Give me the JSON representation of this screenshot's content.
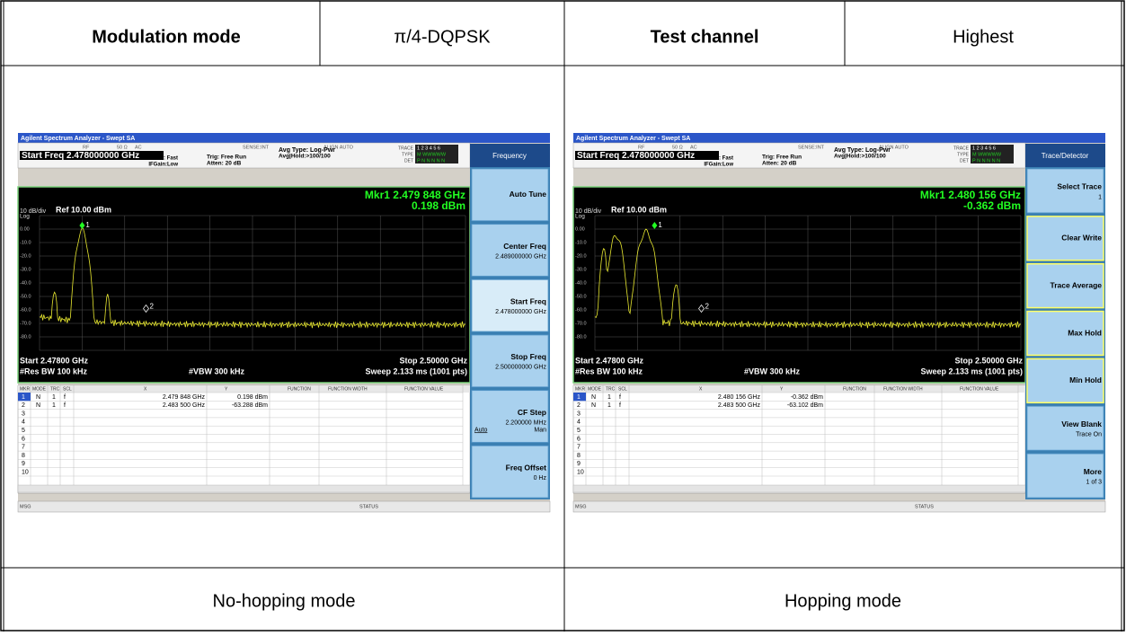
{
  "header": {
    "cells": [
      "Modulation mode",
      "π/4-DQPSK",
      "Test channel",
      "Highest"
    ]
  },
  "captions": [
    "No-hopping mode",
    "Hopping mode"
  ],
  "panels": [
    {
      "title_bar": "Agilent Spectrum Analyzer - Swept SA",
      "status_top": [
        "RF",
        "50 Ω",
        "AC",
        "SENSE:INT",
        "ALIGN AUTO"
      ],
      "start_freq": "Start Freq 2.478000000 GHz",
      "pno": "PNO: Fast",
      "ifgain": "IFGain:Low",
      "trig": "Trig: Free Run",
      "atten": "Atten: 20 dB",
      "avg_type": "Avg Type: Log-Pwr",
      "avg_hold": "Avg|Hold:>100/100",
      "trace_labels": [
        "TRACE",
        "TYPE",
        "DET"
      ],
      "trace_values": [
        "1 2 3 4 5 6",
        "M WWWWW",
        "P N N N N N"
      ],
      "scale": "10 dB/div",
      "ref": "Ref 10.00 dBm",
      "log": "Log",
      "y_labels": [
        "0.00",
        "-10.0",
        "-20.0",
        "-30.0",
        "-40.0",
        "-50.0",
        "-60.0",
        "-70.0",
        "-80.0"
      ],
      "marker_ids": [
        "1",
        "2"
      ],
      "marker_freq": "Mkr1 2.479 848 GHz",
      "marker_level": "0.198 dBm",
      "start": "Start 2.47800 GHz",
      "stop": "Stop 2.50000 GHz",
      "rbw": "#Res BW 100 kHz",
      "vbw": "#VBW 300 kHz",
      "sweep": "Sweep  2.133 ms (1001 pts)",
      "table_header": [
        "MKR",
        "MODE",
        "TRC",
        "SCL",
        "X",
        "Y",
        "FUNCTION",
        "FUNCTION WIDTH",
        "FUNCTION VALUE"
      ],
      "table_rows": [
        [
          "1",
          "N",
          "1",
          "f",
          "2.479 848 GHz",
          "0.198 dBm"
        ],
        [
          "2",
          "N",
          "1",
          "f",
          "2.483 500 GHz",
          "-63.288 dBm"
        ]
      ],
      "row_numbers": [
        "3",
        "4",
        "5",
        "6",
        "7",
        "8",
        "9",
        "10"
      ],
      "msg": "MSG",
      "status": "STATUS",
      "menu_title": "Frequency",
      "softkeys": [
        {
          "label": "Auto Tune"
        },
        {
          "label": "Center Freq",
          "sub": "2.489000000 GHz"
        },
        {
          "label": "Start Freq",
          "sub": "2.478000000 GHz"
        },
        {
          "label": "Stop Freq",
          "sub": "2.500000000 GHz"
        },
        {
          "label": "CF Step",
          "sub": "2.200000 MHz",
          "extra": [
            "Auto",
            "Man"
          ]
        },
        {
          "label": "Freq Offset",
          "sub": "0 Hz"
        }
      ]
    },
    {
      "title_bar": "Agilent Spectrum Analyzer - Swept SA",
      "status_top": [
        "RF",
        "50 Ω",
        "AC",
        "SENSE:INT",
        "ALIGN AUTO"
      ],
      "start_freq": "Start Freq 2.478000000 GHz",
      "pno": "PNO: Fast",
      "ifgain": "IFGain:Low",
      "trig": "Trig: Free Run",
      "atten": "Atten: 20 dB",
      "avg_type": "Avg Type: Log-Pwr",
      "avg_hold": "Avg|Hold:>100/100",
      "trace_labels": [
        "TRACE",
        "TYPE",
        "DET"
      ],
      "trace_values": [
        "1 2 3 4 5 6",
        "M WWWWW",
        "P N N N N N"
      ],
      "scale": "10 dB/div",
      "ref": "Ref 10.00 dBm",
      "log": "Log",
      "y_labels": [
        "0.00",
        "-10.0",
        "-20.0",
        "-30.0",
        "-40.0",
        "-50.0",
        "-60.0",
        "-70.0",
        "-80.0"
      ],
      "marker_ids": [
        "1",
        "2"
      ],
      "marker_freq": "Mkr1 2.480 156 GHz",
      "marker_level": "-0.362 dBm",
      "start": "Start 2.47800 GHz",
      "stop": "Stop 2.50000 GHz",
      "rbw": "#Res BW 100 kHz",
      "vbw": "#VBW 300 kHz",
      "sweep": "Sweep  2.133 ms (1001 pts)",
      "table_header": [
        "MKR",
        "MODE",
        "TRC",
        "SCL",
        "X",
        "Y",
        "FUNCTION",
        "FUNCTION WIDTH",
        "FUNCTION VALUE"
      ],
      "table_rows": [
        [
          "1",
          "N",
          "1",
          "f",
          "2.480 156 GHz",
          "-0.362 dBm"
        ],
        [
          "2",
          "N",
          "1",
          "f",
          "2.483 500 GHz",
          "-63.102 dBm"
        ]
      ],
      "row_numbers": [
        "3",
        "4",
        "5",
        "6",
        "7",
        "8",
        "9",
        "10"
      ],
      "msg": "MSG",
      "status": "STATUS",
      "menu_title": "Trace/Detector",
      "softkeys": [
        {
          "label": "Select Trace",
          "sub": "1"
        },
        {
          "label": "Clear Write"
        },
        {
          "label": "Trace Average"
        },
        {
          "label": "Max Hold"
        },
        {
          "label": "Min Hold"
        },
        {
          "label": "View Blank",
          "sub": "Trace On"
        },
        {
          "label": "More",
          "sub": "1 of 3"
        }
      ]
    }
  ]
}
